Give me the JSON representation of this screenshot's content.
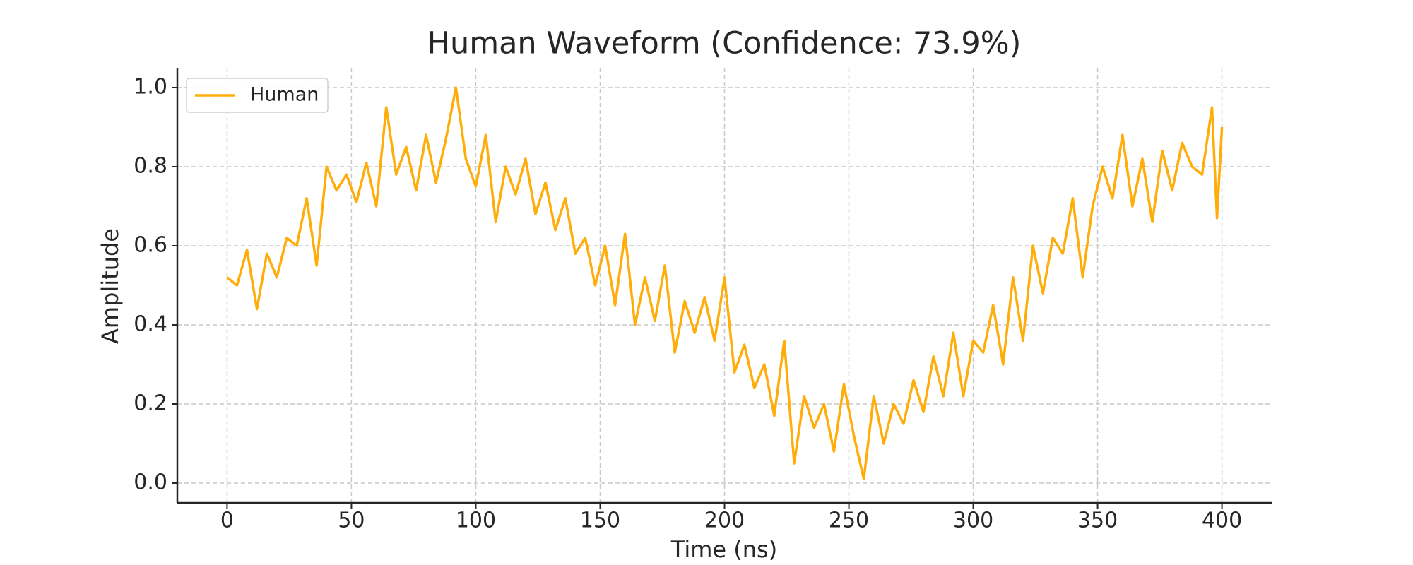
{
  "chart_data": {
    "type": "line",
    "title": "Human Waveform (Confidence: 73.9%)",
    "x_label": "Time (ns)",
    "y_label": "Amplitude",
    "x": [
      0,
      4,
      8,
      12,
      16,
      20,
      24,
      28,
      32,
      36,
      40,
      44,
      48,
      52,
      56,
      60,
      64,
      68,
      72,
      76,
      80,
      84,
      88,
      92,
      96,
      100,
      104,
      108,
      112,
      116,
      120,
      124,
      128,
      132,
      136,
      140,
      144,
      148,
      152,
      156,
      160,
      164,
      168,
      172,
      176,
      180,
      184,
      188,
      192,
      196,
      200,
      204,
      208,
      212,
      216,
      220,
      224,
      228,
      232,
      236,
      240,
      244,
      248,
      252,
      256,
      260,
      264,
      268,
      272,
      276,
      280,
      284,
      288,
      292,
      296,
      300,
      304,
      308,
      312,
      316,
      320,
      324,
      328,
      332,
      336,
      340,
      344,
      348,
      352,
      356,
      360,
      364,
      368,
      372,
      376,
      380,
      384,
      388,
      392,
      396,
      398,
      400
    ],
    "series": [
      {
        "name": "Human",
        "color": "#ffad0a",
        "values": [
          0.52,
          0.5,
          0.59,
          0.44,
          0.58,
          0.52,
          0.62,
          0.6,
          0.72,
          0.55,
          0.8,
          0.74,
          0.78,
          0.71,
          0.81,
          0.7,
          0.95,
          0.78,
          0.85,
          0.74,
          0.88,
          0.76,
          0.87,
          1.0,
          0.82,
          0.75,
          0.88,
          0.66,
          0.8,
          0.73,
          0.82,
          0.68,
          0.76,
          0.64,
          0.72,
          0.58,
          0.62,
          0.5,
          0.6,
          0.45,
          0.63,
          0.4,
          0.52,
          0.41,
          0.55,
          0.33,
          0.46,
          0.38,
          0.47,
          0.36,
          0.52,
          0.28,
          0.35,
          0.24,
          0.3,
          0.17,
          0.36,
          0.05,
          0.22,
          0.14,
          0.2,
          0.08,
          0.25,
          0.12,
          0.01,
          0.22,
          0.1,
          0.2,
          0.15,
          0.26,
          0.18,
          0.32,
          0.22,
          0.38,
          0.22,
          0.36,
          0.33,
          0.45,
          0.3,
          0.52,
          0.36,
          0.6,
          0.48,
          0.62,
          0.58,
          0.72,
          0.52,
          0.7,
          0.8,
          0.72,
          0.88,
          0.7,
          0.82,
          0.66,
          0.84,
          0.74,
          0.86,
          0.8,
          0.78,
          0.95,
          0.67,
          0.9
        ]
      }
    ],
    "xlim": [
      -20,
      420
    ],
    "ylim": [
      -0.05,
      1.05
    ],
    "xticks": [
      0,
      50,
      100,
      150,
      200,
      250,
      300,
      350,
      400
    ],
    "yticks": [
      {
        "value": 0,
        "label": "0.0"
      },
      {
        "value": 0.2,
        "label": "0.2"
      },
      {
        "value": 0.4,
        "label": "0.4"
      },
      {
        "value": 0.6,
        "label": "0.6"
      },
      {
        "value": 0.8,
        "label": "0.8"
      },
      {
        "value": 1,
        "label": "1.0"
      }
    ],
    "grid": true,
    "legend": "upper left"
  }
}
